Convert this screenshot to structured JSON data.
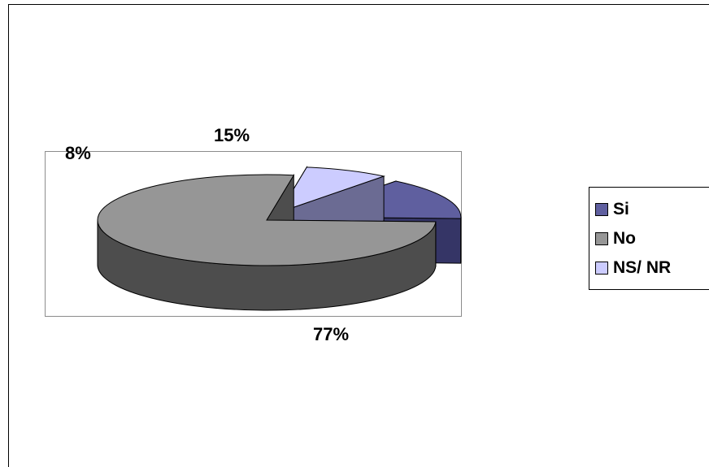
{
  "chart_data": {
    "type": "pie",
    "categories": [
      "Si",
      "No",
      "NS/ NR"
    ],
    "values": [
      15,
      77,
      8
    ],
    "data_labels": [
      "15%",
      "77%",
      "8%"
    ],
    "colors": [
      "#5f5f9f",
      "#969696",
      "#ccccff"
    ],
    "side_colors": [
      "#353566",
      "#4d4d4d",
      "#6b6b93"
    ],
    "legend_placement": "right",
    "legend": [
      "Si",
      "No",
      "NS/ NR"
    ]
  }
}
